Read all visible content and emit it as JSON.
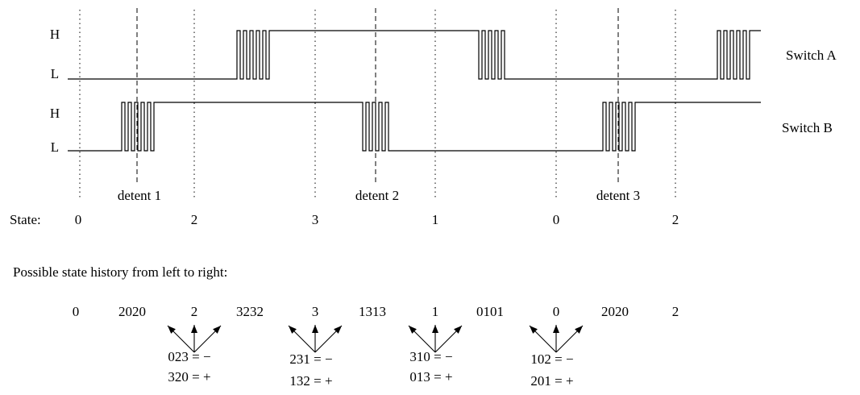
{
  "colors": {
    "ink": "#000000",
    "highlight": "#ff0000"
  },
  "signals": {
    "a": {
      "name": "Switch A",
      "high": "H",
      "low": "L"
    },
    "b": {
      "name": "Switch B",
      "high": "H",
      "low": "L"
    }
  },
  "detents": [
    "detent 1",
    "detent 2",
    "detent 3"
  ],
  "state_row": {
    "label": "State:",
    "values": [
      "0",
      "2",
      "3",
      "1",
      "0",
      "2"
    ]
  },
  "history_caption": "Possible state history from left to right:",
  "history_sequence": [
    "0",
    "2020",
    "2",
    "3232",
    "3",
    "1313",
    "1",
    "0101",
    "0",
    "2020",
    "2"
  ],
  "transitions": [
    {
      "minus": "023 = −",
      "plus": "320 = +",
      "color": "#000000"
    },
    {
      "minus": "231 = −",
      "plus": "132 = +",
      "color": "#ff0000"
    },
    {
      "minus": "310 = −",
      "plus": "013 = +",
      "color": "#000000"
    },
    {
      "minus": "102 = −",
      "plus": "201 = +",
      "color": "#ff0000"
    }
  ]
}
